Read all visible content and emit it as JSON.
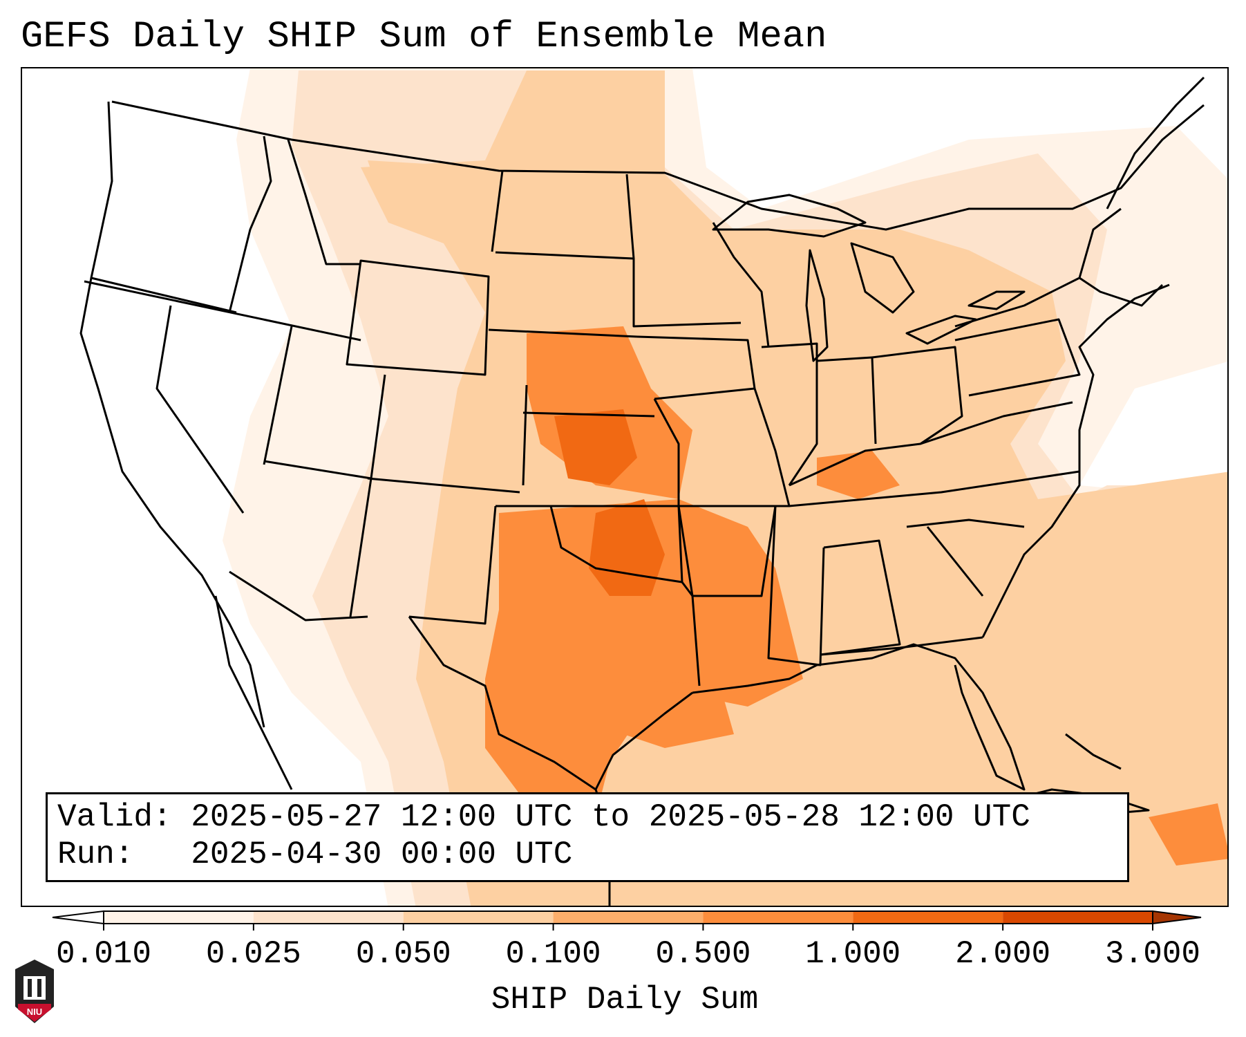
{
  "title": "GEFS Daily SHIP Sum of Ensemble Mean",
  "info": {
    "valid_label": "Valid:",
    "valid_value": "2025-05-27 12:00 UTC to 2025-05-28 12:00 UTC",
    "run_label": "Run:",
    "run_value": "2025-04-30 00:00 UTC"
  },
  "colorbar": {
    "label": "SHIP Daily Sum",
    "ticks": [
      "0.010",
      "0.025",
      "0.050",
      "0.100",
      "0.500",
      "1.000",
      "2.000",
      "3.000"
    ],
    "colors": [
      "#ffffff",
      "#fff3e8",
      "#fde3cc",
      "#fdd0a2",
      "#fdae6b",
      "#fd8d3c",
      "#f16913",
      "#d94801"
    ],
    "under_color": "#ffffff",
    "over_color": "#a63603"
  },
  "logo": {
    "text": "NIU"
  },
  "map": {
    "projection": "Lambert Conformal, CONUS",
    "features": [
      "coastlines",
      "country-borders",
      "state-borders",
      "great-lakes"
    ]
  }
}
